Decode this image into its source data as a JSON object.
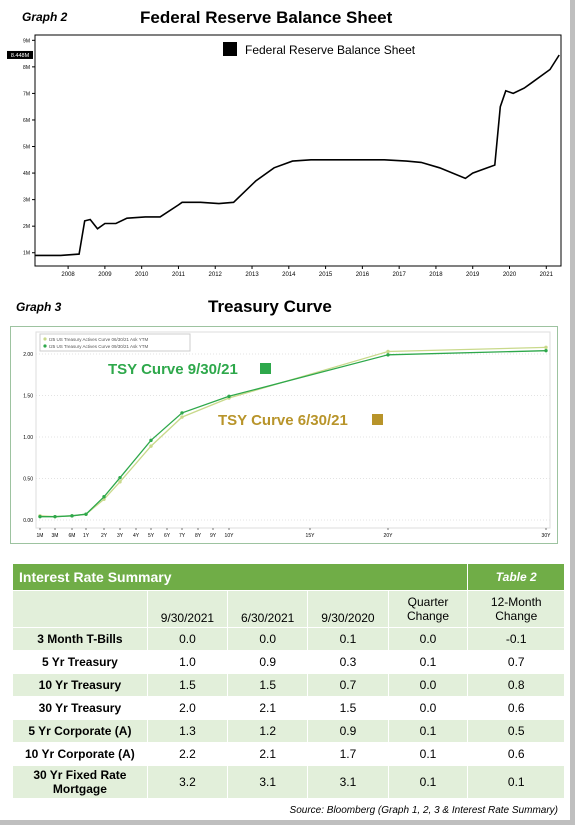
{
  "graph2": {
    "label": "Graph 2",
    "title": "Federal Reserve Balance Sheet",
    "legend": "Federal Reserve Balance Sheet",
    "last_value_tag": "8.448M"
  },
  "graph3": {
    "label": "Graph 3",
    "title": "Treasury Curve",
    "legend_lines": [
      "I25 US Treasury Actives Curve 06/30/21 Ask YTM",
      "I25 US Treasury Actives Curve 09/30/21 Ask YTM"
    ],
    "annotation_sep": "TSY Curve 9/30/21",
    "annotation_jun": "TSY Curve 6/30/21"
  },
  "colors": {
    "sep": "#2ea84b",
    "jun": "#b8942a",
    "green_header": "#70ad47",
    "band": "#e2efda"
  },
  "chart_data": [
    {
      "type": "line",
      "title": "Federal Reserve Balance Sheet",
      "x_ticks": [
        "2008",
        "2009",
        "2010",
        "2011",
        "2012",
        "2013",
        "2014",
        "2015",
        "2016",
        "2017",
        "2018",
        "2019",
        "2020",
        "2021"
      ],
      "y_ticks": [
        "1M",
        "2M",
        "3M",
        "4M",
        "5M",
        "6M",
        "7M",
        "8M",
        "9M"
      ],
      "ylim": [
        0.5,
        9.2
      ],
      "series": [
        {
          "name": "Federal Reserve Balance Sheet",
          "x": [
            2007.5,
            2008.2,
            2008.7,
            2008.85,
            2009.0,
            2009.2,
            2009.4,
            2009.7,
            2010.0,
            2010.5,
            2010.9,
            2011.4,
            2011.5,
            2012.0,
            2012.5,
            2012.9,
            2013.5,
            2014.0,
            2014.5,
            2015.0,
            2016.0,
            2017.0,
            2017.6,
            2018.0,
            2018.5,
            2019.2,
            2019.4,
            2019.8,
            2020.0,
            2020.15,
            2020.3,
            2020.5,
            2020.8,
            2021.0,
            2021.5,
            2021.75
          ],
          "values": [
            0.9,
            0.9,
            0.95,
            2.2,
            2.25,
            1.9,
            2.1,
            2.1,
            2.3,
            2.35,
            2.35,
            2.8,
            2.9,
            2.9,
            2.85,
            2.9,
            3.7,
            4.2,
            4.45,
            4.5,
            4.5,
            4.5,
            4.45,
            4.4,
            4.2,
            3.8,
            4.0,
            4.2,
            4.3,
            6.5,
            7.1,
            7.0,
            7.2,
            7.4,
            7.9,
            8.448
          ]
        }
      ]
    },
    {
      "type": "line",
      "title": "Treasury Curve",
      "categories": [
        "1M",
        "3M",
        "6M",
        "1Y",
        "2Y",
        "3Y",
        "4Y",
        "5Y",
        "6Y",
        "7Y",
        "8Y",
        "9Y",
        "10Y",
        "15Y",
        "20Y",
        "30Y"
      ],
      "y_ticks": [
        "0.00",
        "0.50",
        "1.00",
        "1.50",
        "2.00"
      ],
      "ylim": [
        -0.05,
        2.15
      ],
      "series": [
        {
          "name": "I25 US Treasury Actives Curve 06/30/21 Ask YTM",
          "x": [
            1,
            3,
            6,
            12,
            24,
            36,
            60,
            84,
            120,
            240,
            360
          ],
          "values": [
            0.05,
            0.04,
            0.05,
            0.07,
            0.25,
            0.46,
            0.89,
            1.24,
            1.47,
            2.03,
            2.08
          ]
        },
        {
          "name": "I25 US Treasury Actives Curve 09/30/21 Ask YTM",
          "x": [
            1,
            3,
            6,
            12,
            24,
            36,
            60,
            84,
            120,
            240,
            360
          ],
          "values": [
            0.04,
            0.04,
            0.05,
            0.07,
            0.28,
            0.51,
            0.96,
            1.29,
            1.49,
            1.99,
            2.04
          ]
        }
      ]
    },
    {
      "type": "table",
      "title": "Interest Rate Summary",
      "tag": "Table 2",
      "columns": [
        "",
        "9/30/2021",
        "6/30/2021",
        "9/30/2020",
        "Quarter Change",
        "12-Month Change"
      ],
      "rows": [
        [
          "3 Month T-Bills",
          "0.0",
          "0.0",
          "0.1",
          "0.0",
          "-0.1"
        ],
        [
          "5 Yr Treasury",
          "1.0",
          "0.9",
          "0.3",
          "0.1",
          "0.7"
        ],
        [
          "10 Yr Treasury",
          "1.5",
          "1.5",
          "0.7",
          "0.0",
          "0.8"
        ],
        [
          "30 Yr Treasury",
          "2.0",
          "2.1",
          "1.5",
          "0.0",
          "0.6"
        ],
        [
          "5 Yr Corporate (A)",
          "1.3",
          "1.2",
          "0.9",
          "0.1",
          "0.5"
        ],
        [
          "10 Yr Corporate (A)",
          "2.2",
          "2.1",
          "1.7",
          "0.1",
          "0.6"
        ],
        [
          "30 Yr Fixed Rate Mortgage",
          "3.2",
          "3.1",
          "3.1",
          "0.1",
          "0.1"
        ]
      ]
    }
  ],
  "source": "Source: Bloomberg (Graph 1, 2, 3 & Interest Rate Summary)"
}
